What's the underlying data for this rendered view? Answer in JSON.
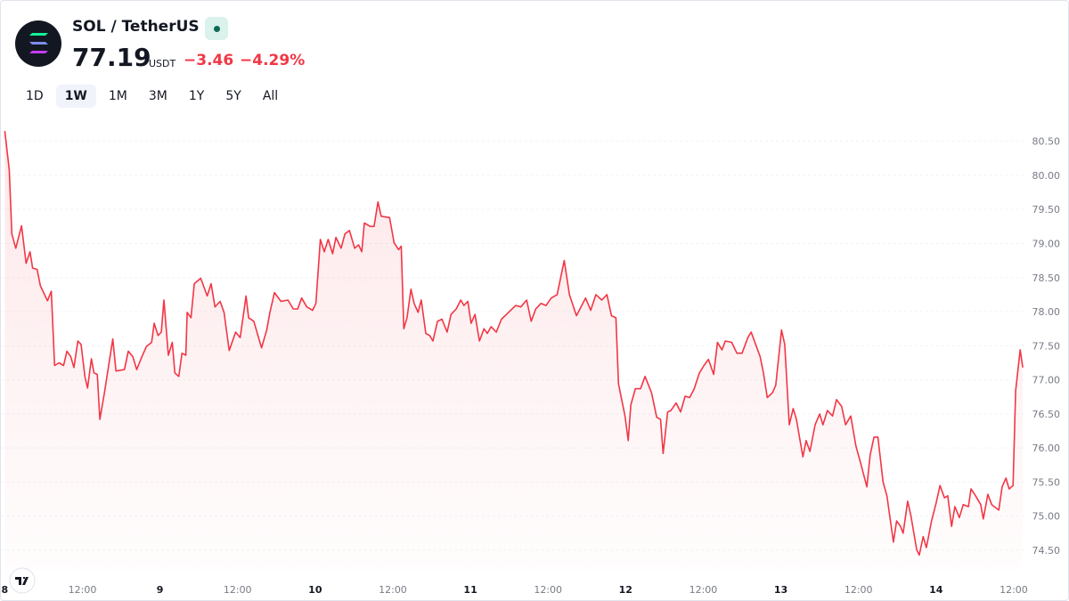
{
  "header": {
    "symbol": "SOL / TetherUS",
    "price": "77.19",
    "currency": "USDT",
    "change": "−3.46",
    "change_percent": "−4.29%"
  },
  "ranges": {
    "items": [
      "1D",
      "1W",
      "1M",
      "3M",
      "1Y",
      "5Y",
      "All"
    ],
    "active": 1
  },
  "chart_data": {
    "type": "line",
    "color": "#f23645",
    "grid": true,
    "xlim": [
      -0.6,
      157.8
    ],
    "ylim": [
      74.2,
      80.73
    ],
    "xticks": [
      {
        "value": 0,
        "label": "8"
      },
      {
        "value": 12,
        "label": "12:00"
      },
      {
        "value": 24,
        "label": "9"
      },
      {
        "value": 36,
        "label": "12:00"
      },
      {
        "value": 48,
        "label": "10"
      },
      {
        "value": 60,
        "label": "12:00"
      },
      {
        "value": 72,
        "label": "11"
      },
      {
        "value": 84,
        "label": "12:00"
      },
      {
        "value": 96,
        "label": "12"
      },
      {
        "value": 108,
        "label": "12:00"
      },
      {
        "value": 120,
        "label": "13"
      },
      {
        "value": 132,
        "label": "12:00"
      },
      {
        "value": 144,
        "label": "14"
      },
      {
        "value": 156,
        "label": "12:00"
      }
    ],
    "yticks": [
      {
        "value": 74.5,
        "label": "74.50"
      },
      {
        "value": 75,
        "label": "75.00"
      },
      {
        "value": 75.5,
        "label": "75.50"
      },
      {
        "value": 76,
        "label": "76.00"
      },
      {
        "value": 76.5,
        "label": "76.50"
      },
      {
        "value": 77,
        "label": "77.00"
      },
      {
        "value": 77.5,
        "label": "77.50"
      },
      {
        "value": 78,
        "label": "78.00"
      },
      {
        "value": 78.5,
        "label": "78.50"
      },
      {
        "value": 79,
        "label": "79.00"
      },
      {
        "value": 79.5,
        "label": "79.50"
      },
      {
        "value": 80,
        "label": "80.00"
      },
      {
        "value": 80.5,
        "label": "80.50"
      }
    ],
    "x": [
      0,
      0.7,
      1.1,
      1.7,
      2.6,
      3.3,
      3.9,
      4.3,
      5.0,
      5.5,
      6.6,
      7.2,
      7.7,
      8.4,
      9.1,
      9.6,
      10.2,
      10.7,
      11.3,
      11.8,
      12.4,
      12.8,
      13.4,
      13.8,
      14.3,
      14.7,
      15.4,
      16.7,
      17.2,
      18.5,
      19.1,
      19.8,
      20.4,
      21.2,
      21.9,
      22.7,
      23.1,
      23.7,
      24.2,
      24.6,
      25.3,
      25.9,
      26.3,
      26.9,
      27.4,
      28.0,
      28.2,
      28.8,
      29.3,
      30.3,
      31.3,
      31.9,
      32.5,
      33.3,
      33.9,
      34.7,
      35.7,
      36.4,
      37.3,
      37.7,
      38.5,
      39.7,
      40.5,
      41.0,
      41.7,
      42.7,
      43.8,
      44.6,
      45.3,
      45.9,
      46.7,
      47.6,
      48.1,
      48.8,
      49.4,
      50.0,
      50.7,
      51.2,
      52.0,
      52.6,
      53.3,
      54.1,
      54.7,
      55.2,
      55.6,
      56.5,
      57.1,
      57.7,
      58.2,
      59.5,
      60.2,
      60.9,
      61.3,
      61.7,
      62.2,
      62.8,
      63.3,
      63.9,
      64.4,
      65.1,
      65.7,
      66.2,
      66.9,
      67.6,
      68.4,
      69.0,
      69.8,
      70.5,
      71.0,
      71.6,
      72.1,
      72.7,
      73.4,
      74.1,
      74.6,
      75.2,
      76.0,
      76.8,
      77.9,
      79.0,
      79.8,
      80.7,
      81.4,
      82.1,
      82.9,
      83.7,
      84.5,
      85.4,
      86.5,
      87.3,
      88.4,
      89.2,
      89.8,
      90.6,
      91.4,
      92.3,
      93.1,
      93.8,
      94.5,
      94.9,
      95.9,
      96.4,
      96.8,
      97.5,
      98.3,
      99.0,
      100.0,
      100.8,
      101.4,
      101.8,
      102.5,
      103.0,
      103.8,
      104.5,
      105.2,
      105.9,
      106.6,
      107.4,
      108.1,
      108.8,
      109.6,
      110.2,
      110.9,
      111.4,
      112.4,
      113.2,
      114.0,
      114.9,
      115.4,
      116.1,
      116.8,
      117.3,
      117.9,
      118.7,
      119.2,
      120.1,
      120.6,
      121.3,
      121.9,
      122.4,
      123.4,
      123.9,
      124.5,
      125.3,
      126.0,
      126.5,
      127.2,
      128.0,
      128.6,
      129.4,
      130.0,
      130.8,
      131.6,
      132.3,
      133.3,
      133.8,
      134.4,
      135.0,
      135.8,
      136.4,
      137.4,
      137.9,
      138.5,
      138.9,
      139.6,
      140.1,
      141.0,
      141.4,
      142.0,
      142.5,
      143.3,
      144.0,
      144.6,
      145.3,
      145.8,
      146.4,
      146.9,
      147.6,
      148.2,
      149.0,
      149.4,
      150.1,
      150.9,
      151.3,
      152.0,
      152.6,
      153.7,
      154.2,
      154.8,
      155.3,
      155.9,
      156.3,
      157.0,
      157.4
    ],
    "series": [
      {
        "name": "SOL / TetherUS",
        "color": "#f23645",
        "values": [
          80.65,
          80.08,
          79.14,
          78.93,
          79.26,
          78.71,
          78.88,
          78.64,
          78.62,
          78.38,
          78.16,
          78.3,
          77.21,
          77.25,
          77.21,
          77.42,
          77.34,
          77.18,
          77.57,
          77.52,
          77.04,
          76.88,
          77.31,
          77.1,
          77.08,
          76.42,
          76.81,
          77.6,
          77.13,
          77.15,
          77.42,
          77.34,
          77.15,
          77.34,
          77.49,
          77.55,
          77.83,
          77.65,
          77.7,
          78.17,
          77.36,
          77.55,
          77.1,
          77.05,
          77.39,
          77.36,
          77.99,
          77.91,
          78.41,
          78.49,
          78.23,
          78.41,
          78.07,
          78.15,
          77.99,
          77.43,
          77.7,
          77.62,
          78.23,
          77.91,
          77.86,
          77.47,
          77.73,
          77.99,
          78.28,
          78.15,
          78.17,
          78.04,
          78.04,
          78.2,
          78.07,
          78.02,
          78.12,
          79.06,
          78.88,
          79.06,
          78.85,
          79.09,
          78.93,
          79.14,
          79.19,
          78.93,
          78.98,
          78.88,
          79.3,
          79.25,
          79.25,
          79.61,
          79.4,
          79.38,
          79.01,
          78.91,
          78.96,
          77.75,
          77.91,
          78.33,
          78.12,
          77.99,
          78.17,
          77.68,
          77.65,
          77.57,
          77.86,
          77.89,
          77.7,
          77.96,
          78.04,
          78.17,
          78.09,
          78.15,
          77.83,
          77.96,
          77.57,
          77.75,
          77.68,
          77.78,
          77.7,
          77.89,
          77.99,
          78.09,
          78.07,
          78.17,
          77.86,
          78.04,
          78.12,
          78.09,
          78.2,
          78.25,
          78.75,
          78.25,
          77.94,
          78.09,
          78.2,
          78.02,
          78.25,
          78.17,
          78.25,
          77.94,
          77.91,
          76.94,
          76.47,
          76.11,
          76.63,
          76.87,
          76.87,
          77.05,
          76.81,
          76.45,
          76.42,
          75.92,
          76.53,
          76.55,
          76.66,
          76.53,
          76.76,
          76.74,
          76.87,
          77.1,
          77.21,
          77.3,
          77.08,
          77.55,
          77.44,
          77.57,
          77.55,
          77.39,
          77.39,
          77.62,
          77.7,
          77.52,
          77.34,
          77.1,
          76.74,
          76.81,
          76.92,
          77.73,
          77.52,
          76.34,
          76.58,
          76.42,
          75.87,
          76.11,
          75.95,
          76.34,
          76.5,
          76.34,
          76.55,
          76.47,
          76.71,
          76.61,
          76.34,
          76.47,
          76.03,
          75.79,
          75.43,
          75.9,
          76.16,
          76.16,
          75.5,
          75.3,
          74.62,
          74.93,
          74.85,
          74.75,
          75.22,
          75.01,
          74.51,
          74.43,
          74.7,
          74.54,
          74.93,
          75.19,
          75.45,
          75.27,
          75.3,
          74.85,
          75.14,
          74.98,
          75.17,
          75.14,
          75.4,
          75.3,
          75.17,
          74.96,
          75.32,
          75.17,
          75.09,
          75.43,
          75.56,
          75.4,
          75.45,
          76.84,
          77.44,
          77.18
        ]
      }
    ]
  }
}
